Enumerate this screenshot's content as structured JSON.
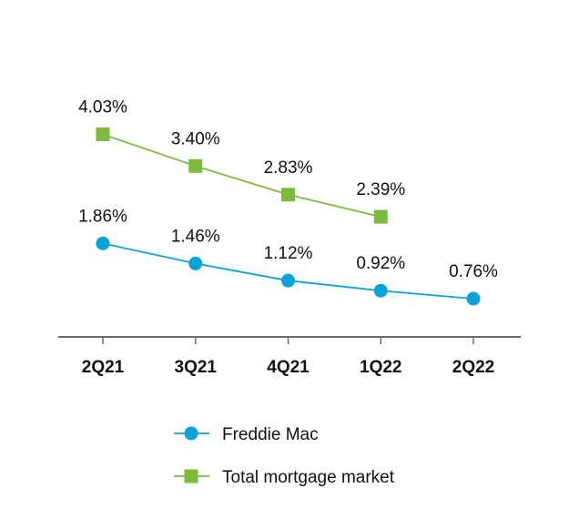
{
  "chart_data": {
    "type": "line",
    "title": "",
    "xlabel": "",
    "ylabel": "",
    "categories": [
      "2Q21",
      "3Q21",
      "4Q21",
      "1Q22",
      "2Q22"
    ],
    "ylim": [
      0,
      4.5
    ],
    "grid": false,
    "legend_position": "bottom",
    "series": [
      {
        "name": "Freddie Mac",
        "marker": "circle",
        "color": "#0aa3d9",
        "values": [
          1.86,
          1.46,
          1.12,
          0.92,
          0.76
        ],
        "labels": [
          "1.86%",
          "1.46%",
          "1.12%",
          "0.92%",
          "0.76%"
        ]
      },
      {
        "name": "Total mortgage market",
        "marker": "square",
        "color": "#7cbc3c",
        "values": [
          4.03,
          3.4,
          2.83,
          2.39,
          null
        ],
        "labels": [
          "4.03%",
          "3.40%",
          "2.83%",
          "2.39%",
          null
        ]
      }
    ]
  }
}
